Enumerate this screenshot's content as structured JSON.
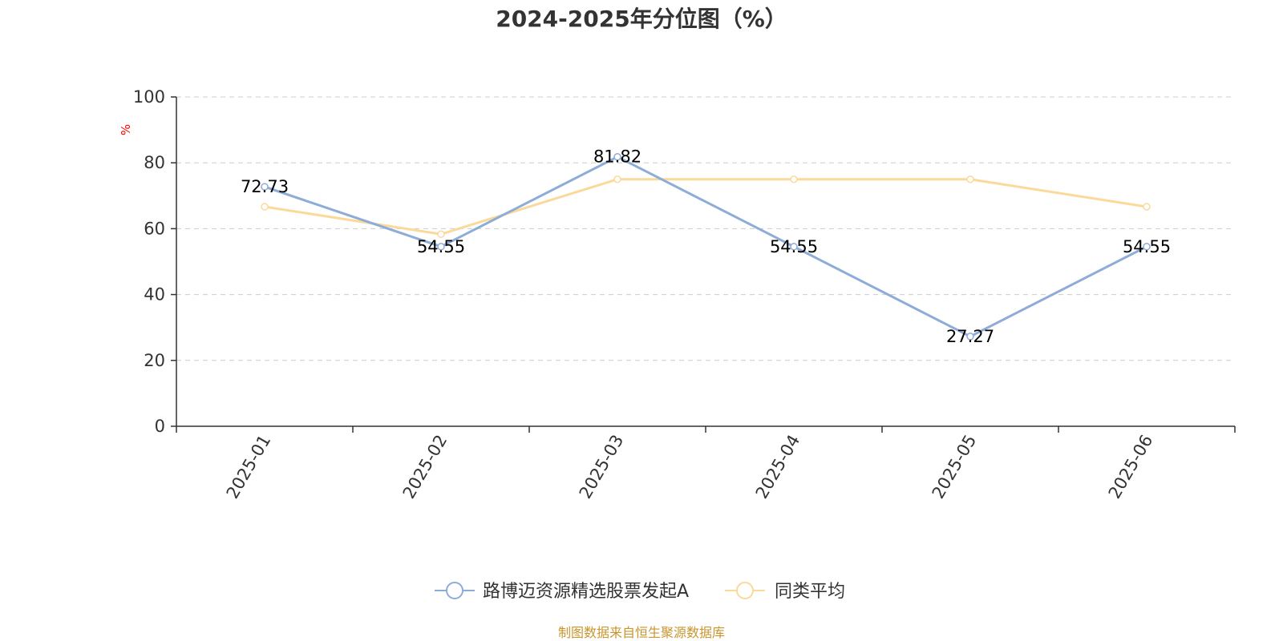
{
  "chart_data": {
    "type": "line",
    "title": "2024-2025年分位图（%）",
    "ylabel": "%",
    "ylim": [
      0,
      100
    ],
    "yticks": [
      "0",
      "20",
      "40",
      "60",
      "80",
      "100"
    ],
    "grid": true,
    "legend_position": "bottom-center",
    "categories": [
      "2025-01",
      "2025-02",
      "2025-03",
      "2025-04",
      "2025-05",
      "2025-06"
    ],
    "series": [
      {
        "name": "路博迈资源精选股票发起A",
        "color": "#8eacd8",
        "values": [
          72.73,
          54.55,
          81.82,
          54.55,
          27.27,
          54.55
        ],
        "labels": [
          "72.73",
          "54.55",
          "81.82",
          "54.55",
          "27.27",
          "54.55"
        ]
      },
      {
        "name": "同类平均",
        "color": "#fbd99b",
        "values": [
          66.67,
          58.33,
          75.0,
          75.0,
          75.0,
          66.67
        ]
      }
    ]
  },
  "source": "制图数据来自恒生聚源数据库",
  "colors": {
    "axis": "#333333",
    "grid": "#cccccc",
    "ylabel": "#ff0000",
    "source": "#c8962e"
  }
}
